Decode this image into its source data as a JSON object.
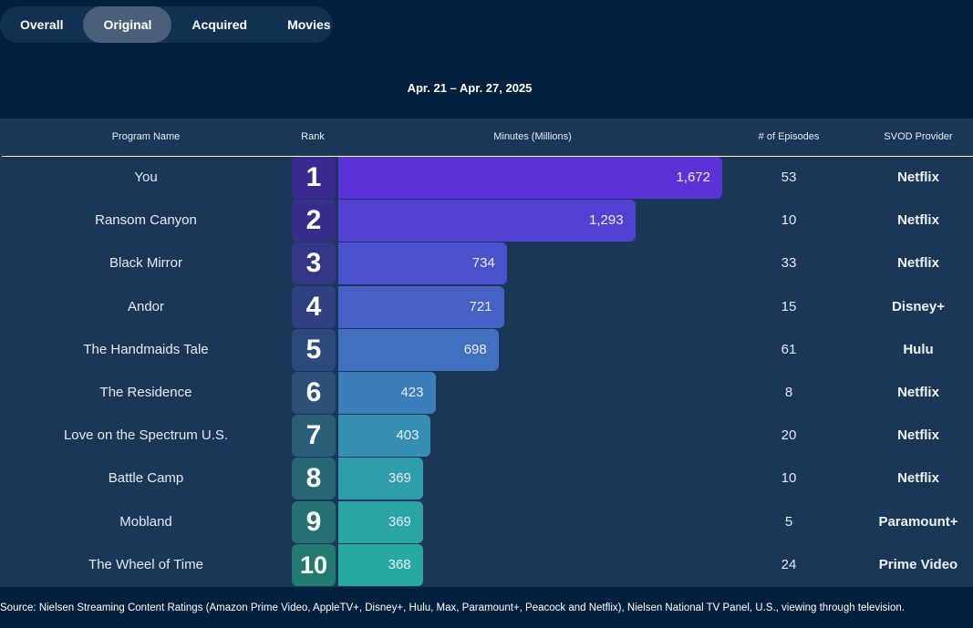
{
  "tabs": [
    "Overall",
    "Original",
    "Acquired",
    "Movies"
  ],
  "active_tab": 1,
  "date_range": "Apr. 21 – Apr. 27, 2025",
  "source_note": "Source: Nielsen Streaming Content Ratings (Amazon Prime Video, AppleTV+, Disney+, Hulu, Max, Paramount+, Peacock and Netflix), Nielsen National TV Panel, U.S., viewing through television.",
  "colors": {
    "background": "#03203f",
    "table": "#1b3757",
    "bar_gradient": [
      "#5b31d8",
      "#5241d2",
      "#4c51cc",
      "#4760c5",
      "#4170bf",
      "#3a7fb9",
      "#348fb2",
      "#2f9eac",
      "#2aa5a6",
      "#26aaa0"
    ],
    "rank_gradient": [
      "#3a2a8f",
      "#362e8a",
      "#333687",
      "#313f83",
      "#2e4880",
      "#2c527c",
      "#295d78",
      "#276774",
      "#257072",
      "#237a70"
    ]
  },
  "chart_data": {
    "type": "bar",
    "orientation": "horizontal",
    "columns": [
      "Program Name",
      "Rank",
      "Minutes (Millions)",
      "# of Episodes",
      "SVOD Provider"
    ],
    "max_value": 1672,
    "rows": [
      {
        "name": "You",
        "rank": "1",
        "minutes": 1672,
        "minutes_label": "1,672",
        "episodes": "53",
        "provider": "Netflix"
      },
      {
        "name": "Ransom Canyon",
        "rank": "2",
        "minutes": 1293,
        "minutes_label": "1,293",
        "episodes": "10",
        "provider": "Netflix"
      },
      {
        "name": "Black Mirror",
        "rank": "3",
        "minutes": 734,
        "minutes_label": "734",
        "episodes": "33",
        "provider": "Netflix"
      },
      {
        "name": "Andor",
        "rank": "4",
        "minutes": 721,
        "minutes_label": "721",
        "episodes": "15",
        "provider": "Disney+"
      },
      {
        "name": "The Handmaids Tale",
        "rank": "5",
        "minutes": 698,
        "minutes_label": "698",
        "episodes": "61",
        "provider": "Hulu"
      },
      {
        "name": "The Residence",
        "rank": "6",
        "minutes": 423,
        "minutes_label": "423",
        "episodes": "8",
        "provider": "Netflix"
      },
      {
        "name": "Love on the Spectrum U.S.",
        "rank": "7",
        "minutes": 403,
        "minutes_label": "403",
        "episodes": "20",
        "provider": "Netflix"
      },
      {
        "name": "Battle Camp",
        "rank": "8",
        "minutes": 369,
        "minutes_label": "369",
        "episodes": "10",
        "provider": "Netflix"
      },
      {
        "name": "Mobland",
        "rank": "9",
        "minutes": 369,
        "minutes_label": "369",
        "episodes": "5",
        "provider": "Paramount+"
      },
      {
        "name": "The Wheel of Time",
        "rank": "10",
        "minutes": 368,
        "minutes_label": "368",
        "episodes": "24",
        "provider": "Prime Video"
      }
    ]
  }
}
